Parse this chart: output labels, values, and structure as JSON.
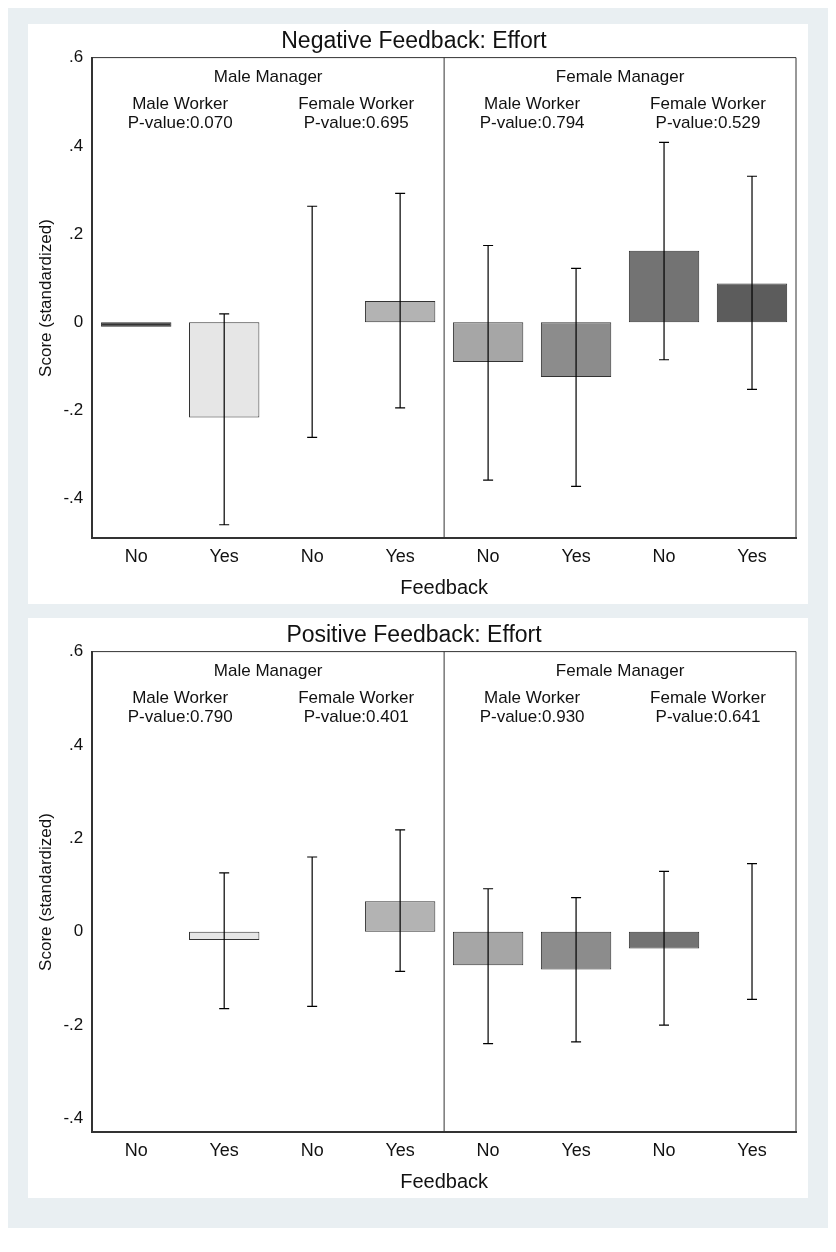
{
  "chart_data": [
    {
      "type": "bar",
      "title": "Negative Feedback: Effort",
      "xlabel": "Feedback",
      "ylabel": "Score (standardized)",
      "categories": [
        "No",
        "Yes",
        "No",
        "Yes",
        "No",
        "Yes",
        "No",
        "Yes"
      ],
      "values": [
        -0.01,
        -0.216,
        0,
        0.048,
        -0.09,
        -0.124,
        0.162,
        0.088
      ],
      "colors": [
        "#333333",
        "#e6e6e6",
        "#d9d9d9",
        "#b3b3b3",
        "#a6a6a6",
        "#8c8c8c",
        "#737373",
        "#5c5c5c"
      ],
      "errors": [
        null,
        [
          -0.459,
          0.019
        ],
        [
          -0.261,
          0.263
        ],
        [
          -0.194,
          0.292
        ],
        [
          -0.358,
          0.174
        ],
        [
          -0.372,
          0.122
        ],
        [
          -0.085,
          0.408
        ],
        [
          -0.152,
          0.331
        ]
      ],
      "ylim": [
        -0.49,
        0.6
      ],
      "yticks": [
        {
          "value": -0.4,
          "label": "-.4"
        },
        {
          "value": -0.2,
          "label": "-.2"
        },
        0,
        {
          "value": 0.2,
          "label": ".2"
        },
        {
          "value": 0.4,
          "label": ".4"
        },
        {
          "value": 0.6,
          "label": ".6"
        }
      ],
      "annotations": [
        "Male Manager",
        "Male Worker",
        "P-value:0.070",
        "Female Worker",
        "P-value:0.695",
        "Female Manager",
        "Male Worker",
        "P-value:0.794",
        "Female Worker",
        "P-value:0.529"
      ]
    },
    {
      "type": "bar",
      "title": "Positive Feedback: Effort",
      "xlabel": "Feedback",
      "ylabel": "Score (standardized)",
      "categories": [
        "No",
        "Yes",
        "No",
        "Yes",
        "No",
        "Yes",
        "No",
        "Yes"
      ],
      "values": [
        0,
        -0.018,
        0,
        0.065,
        -0.072,
        -0.081,
        -0.036,
        0
      ],
      "colors": [
        "#333333",
        "#e6e6e6",
        "#d9d9d9",
        "#b3b3b3",
        "#a6a6a6",
        "#8c8c8c",
        "#737373",
        "#5c5c5c"
      ],
      "errors": [
        null,
        [
          -0.165,
          0.126
        ],
        [
          -0.16,
          0.16
        ],
        [
          -0.085,
          0.218
        ],
        [
          -0.24,
          0.092
        ],
        [
          -0.236,
          0.073
        ],
        [
          -0.2,
          0.129
        ],
        [
          -0.145,
          0.146
        ]
      ],
      "ylim": [
        -0.43,
        0.6
      ],
      "yticks": [
        {
          "value": -0.4,
          "label": "-.4"
        },
        {
          "value": -0.2,
          "label": "-.2"
        },
        0,
        {
          "value": 0.2,
          "label": ".2"
        },
        {
          "value": 0.4,
          "label": ".4"
        },
        {
          "value": 0.6,
          "label": ".6"
        }
      ],
      "annotations": [
        "Male Manager",
        "Male Worker",
        "P-value:0.790",
        "Female Worker",
        "P-value:0.401",
        "Female Manager",
        "Male Worker",
        "P-value:0.930",
        "Female Worker",
        "P-value:0.641"
      ]
    }
  ]
}
